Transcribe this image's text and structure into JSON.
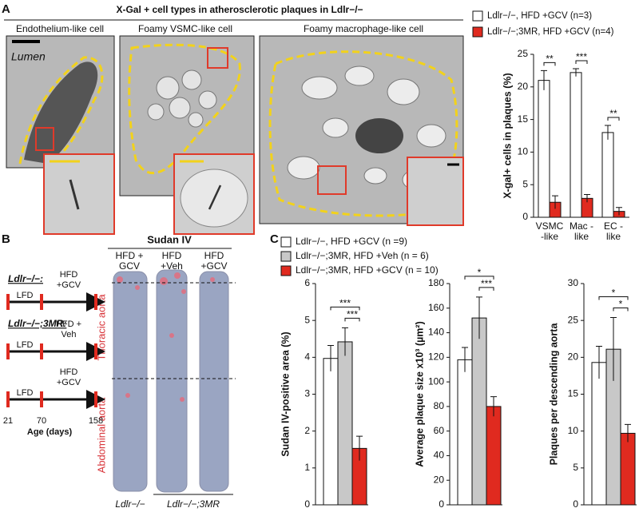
{
  "panel_a": {
    "label": "A",
    "title": "X-Gal + cell types in atherosclerotic plaques in Ldlr−/−",
    "images": [
      {
        "caption": "Endothelium-like cell",
        "annotation": "Lumen"
      },
      {
        "caption": "Foamy VSMC-like cell"
      },
      {
        "caption": "Foamy macrophage-like cell"
      }
    ]
  },
  "panel_b": {
    "label": "B",
    "stain": "Sudan IV",
    "columns": [
      "HFD + GCV",
      "HFD +Veh",
      "HFD +GCV"
    ],
    "regions": [
      "Thoracic aorta",
      "Abdominal aorta"
    ],
    "genotypes": [
      "Ldlr−/−",
      "Ldlr−/−;3MR"
    ],
    "timeline": {
      "groups": [
        {
          "genotype": "Ldlr−/−:",
          "rows": [
            {
              "phase1": "LFD",
              "phase2": "HFD +GCV"
            }
          ]
        },
        {
          "genotype": "Ldlr−/−;3MR:",
          "rows": [
            {
              "phase1": "LFD",
              "phase2": "HFD + Veh"
            },
            {
              "phase1": "LFD",
              "phase2": "HFD +GCV"
            }
          ]
        }
      ],
      "ages": [
        21,
        70,
        158
      ],
      "axis_label": "Age (days)"
    }
  },
  "panel_c": {
    "label": "C"
  },
  "chart_data": [
    {
      "type": "bar",
      "ylabel": "X-gal+ cells in plaques (%)",
      "categories": [
        "VSMC -like",
        "Mac -like",
        "EC -like"
      ],
      "series": [
        {
          "name": "Ldlr−/−, HFD +GCV (n=3)",
          "color": "#ffffff",
          "values": [
            21,
            22.2,
            13
          ],
          "errors": [
            1.5,
            0.6,
            1.1
          ]
        },
        {
          "name": "Ldlr−/−;3MR, HFD +GCV (n=4)",
          "color": "#e02a1f",
          "values": [
            2.3,
            2.9,
            0.9
          ],
          "errors": [
            1.0,
            0.6,
            0.6
          ]
        }
      ],
      "ylim": [
        0,
        25
      ],
      "yticks": [
        0,
        5,
        10,
        15,
        20,
        25
      ],
      "significance": [
        "**",
        "***",
        "**"
      ]
    },
    {
      "type": "bar",
      "series": [
        {
          "name": "Ldlr−/−, HFD +GCV (n =9)",
          "color": "#ffffff",
          "values": [
            3.97,
            118,
            19.3
          ],
          "errors": [
            0.35,
            10,
            2.2
          ]
        },
        {
          "name": "Ldlr−/−;3MR, HFD +Veh (n = 6)",
          "color": "#c8c8c8",
          "values": [
            4.42,
            152,
            21.1
          ],
          "errors": [
            0.38,
            17,
            4.3
          ]
        },
        {
          "name": "Ldlr−/−;3MR, HFD +GCV (n = 10)",
          "color": "#e02a1f",
          "values": [
            1.53,
            80,
            9.7
          ],
          "errors": [
            0.33,
            8,
            1.2
          ]
        }
      ],
      "subplots": [
        {
          "ylabel": "Sudan IV-positive area (%)",
          "ylim": [
            0,
            6
          ],
          "yticks": [
            0,
            1,
            2,
            3,
            4,
            5,
            6
          ],
          "significance": [
            "***",
            "***"
          ]
        },
        {
          "ylabel": "Average plaque size x10³ (µm²)",
          "ylim": [
            0,
            180
          ],
          "yticks": [
            0,
            20,
            40,
            60,
            80,
            100,
            120,
            140,
            160,
            180
          ],
          "significance": [
            "*",
            "***"
          ]
        },
        {
          "ylabel": "Plaques per descending aorta",
          "ylim": [
            0,
            30
          ],
          "yticks": [
            0,
            5,
            10,
            15,
            20,
            25,
            30
          ],
          "significance": [
            "*",
            "*"
          ]
        }
      ]
    }
  ]
}
